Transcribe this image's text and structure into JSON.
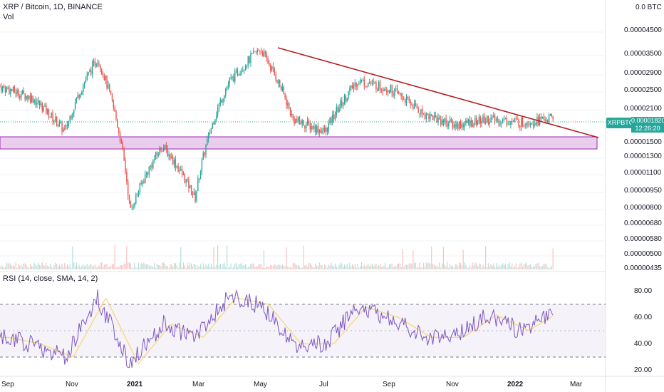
{
  "header": {
    "symbol_line": "XRP / Bitcoin, 1D, BINANCE",
    "vol_label": "Vol"
  },
  "price_axis": {
    "currency_tag": "0.0 BTC",
    "ticks": [
      "0.00004500",
      "0.00003500",
      "0.00002900",
      "0.00002500",
      "0.00002100",
      "0.00001500",
      "0.00001300",
      "0.00001100",
      "0.00000950",
      "0.00000800",
      "0.00000680",
      "0.00000580",
      "0.00000500",
      "0.00000435"
    ]
  },
  "last_price": {
    "symbol_badge": "XRPBTC",
    "value": "0.00001820",
    "countdown": "12:26:20"
  },
  "rsi": {
    "label": "RSI (14, close, SMA, 14, 2)",
    "ticks": [
      "80.00",
      "60.00",
      "40.00",
      "20.00"
    ]
  },
  "time_axis": {
    "labels": [
      "Sep",
      "Nov",
      "2021",
      "Mar",
      "May",
      "Jul",
      "Sep",
      "Nov",
      "2022",
      "Mar"
    ]
  },
  "colors": {
    "up": "#26a69a",
    "down": "#ef5350",
    "trendline": "#b71c1c",
    "support_zone": "#e1bee7",
    "rsi_line": "#7e57c2",
    "rsi_ma": "#f5d76e"
  },
  "chart_data": {
    "type": "line",
    "x": [
      "2020-09",
      "2020-10",
      "2020-11",
      "2020-12",
      "2021-01",
      "2021-02",
      "2021-03",
      "2021-04",
      "2021-05",
      "2021-06",
      "2021-07",
      "2021-08",
      "2021-09",
      "2021-10",
      "2021-11",
      "2021-12",
      "2022-01",
      "2022-02"
    ],
    "series": [
      {
        "values": [
          2.45e-05,
          2.2e-05,
          1.6e-05,
          3.2e-05,
          7.5e-06,
          1.4e-05,
          8.5e-06,
          2.5e-05,
          3.5e-05,
          1.8e-05,
          1.6e-05,
          2.6e-05,
          2.4e-05,
          1.9e-05,
          1.7e-05,
          1.8e-05,
          1.75e-05,
          1.82e-05
        ]
      }
    ],
    "rsi": [
      45,
      40,
      30,
      75,
      25,
      55,
      45,
      75,
      70,
      40,
      40,
      68,
      60,
      45,
      45,
      62,
      50,
      65
    ],
    "ylim": [
      4.35e-06,
      5.2e-05
    ],
    "rsi_ylim": [
      15,
      90
    ]
  }
}
